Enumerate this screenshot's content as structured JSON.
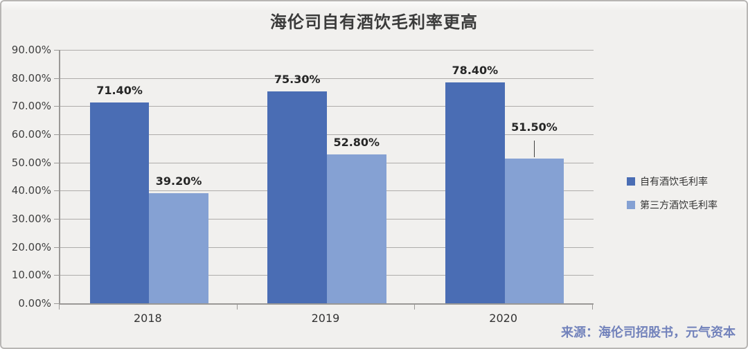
{
  "title": "海伦司自有酒饮毛利率更高",
  "source": "来源：海伦司招股书，元气资本",
  "colors": {
    "background": "#f1f0ee",
    "frame_border": "#b8b6b4",
    "gridline": "#aeacaa",
    "axis": "#9a9896",
    "series_own": "#4a6db4",
    "series_third_party": "#85a1d3",
    "source_text": "#7282bb"
  },
  "chart_data": {
    "type": "bar",
    "title": "海伦司自有酒饮毛利率更高",
    "categories": [
      "2018",
      "2019",
      "2020"
    ],
    "series": [
      {
        "name": "自有酒饮毛利率",
        "color": "#4a6db4",
        "values": [
          71.4,
          75.3,
          78.4
        ],
        "labels": [
          "71.40%",
          "75.30%",
          "78.40%"
        ]
      },
      {
        "name": "第三方酒饮毛利率",
        "color": "#85a1d3",
        "values": [
          39.2,
          52.8,
          51.5
        ],
        "labels": [
          "39.20%",
          "52.80%",
          "51.50%"
        ]
      }
    ],
    "xlabel": "",
    "ylabel": "",
    "ylim": [
      0,
      90
    ],
    "y_ticks": [
      "0.00%",
      "10.00%",
      "20.00%",
      "30.00%",
      "40.00%",
      "50.00%",
      "60.00%",
      "70.00%",
      "80.00%",
      "90.00%"
    ],
    "grid": true,
    "legend_position": "right",
    "raised_label": {
      "series": 1,
      "index": 2,
      "label_raise": 28,
      "leader_height": 24
    }
  }
}
